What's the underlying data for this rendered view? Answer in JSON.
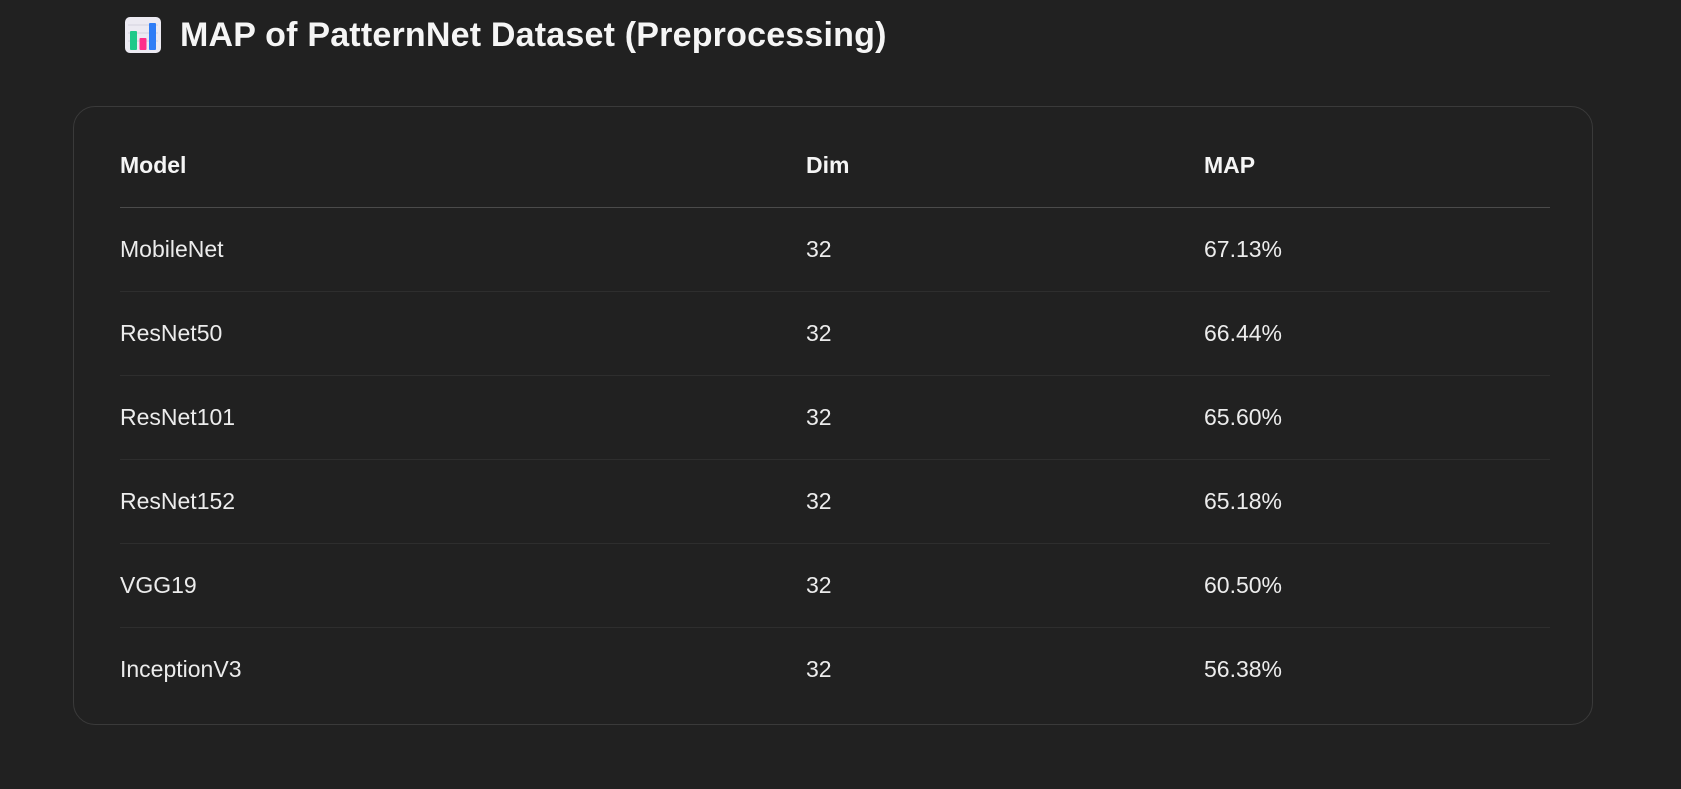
{
  "heading": {
    "icon": "bar-chart-icon",
    "title": "MAP of PatternNet Dataset (Preprocessing)"
  },
  "table": {
    "columns": [
      "Model",
      "Dim",
      "MAP"
    ],
    "rows": [
      {
        "model": "MobileNet",
        "dim": "32",
        "map": "67.13%"
      },
      {
        "model": "ResNet50",
        "dim": "32",
        "map": "66.44%"
      },
      {
        "model": "ResNet101",
        "dim": "32",
        "map": "65.60%"
      },
      {
        "model": "ResNet152",
        "dim": "32",
        "map": "65.18%"
      },
      {
        "model": "VGG19",
        "dim": "32",
        "map": "60.50%"
      },
      {
        "model": "InceptionV3",
        "dim": "32",
        "map": "56.38%"
      }
    ]
  },
  "colors": {
    "background": "#212121",
    "text": "#ececec",
    "border": "#3a3a3a",
    "icon_bar_green": "#1fc98a",
    "icon_bar_pink": "#ff2e8a",
    "icon_bar_blue": "#2f7df6"
  }
}
